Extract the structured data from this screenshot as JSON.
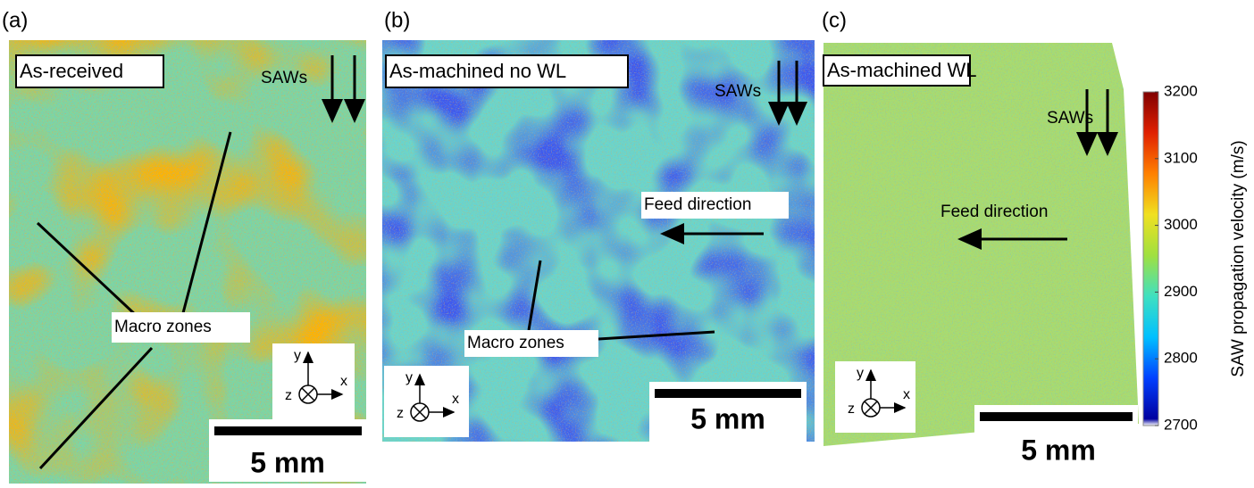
{
  "panels": [
    {
      "label": "(a)",
      "title": "As-received",
      "saws": "SAWs",
      "macro": "Macro zones",
      "scale_bar": "5 mm",
      "axes": {
        "y": "y",
        "z": "z",
        "x": "x"
      }
    },
    {
      "label": "(b)",
      "title": "As-machined no WL",
      "saws": "SAWs",
      "feed": "Feed direction",
      "macro": "Macro zones",
      "scale_bar": "5 mm",
      "axes": {
        "y": "y",
        "z": "z",
        "x": "x"
      }
    },
    {
      "label": "(c)",
      "title": "As-machined WL",
      "saws": "SAWs",
      "feed": "Feed direction",
      "scale_bar": "5 mm",
      "axes": {
        "y": "y",
        "z": "z",
        "x": "x"
      }
    }
  ],
  "colorbar": {
    "label": "SAW propagation velocity (m/s)",
    "lim": [
      2700,
      3200
    ],
    "ticks": [
      2700,
      2800,
      2900,
      3000,
      3100,
      3200
    ],
    "colors": [
      "#ffffff",
      "#0000a0",
      "#0040ff",
      "#00c0ff",
      "#40e0c0",
      "#a0e040",
      "#f0e020",
      "#ff8000",
      "#e02000",
      "#800000"
    ]
  }
}
